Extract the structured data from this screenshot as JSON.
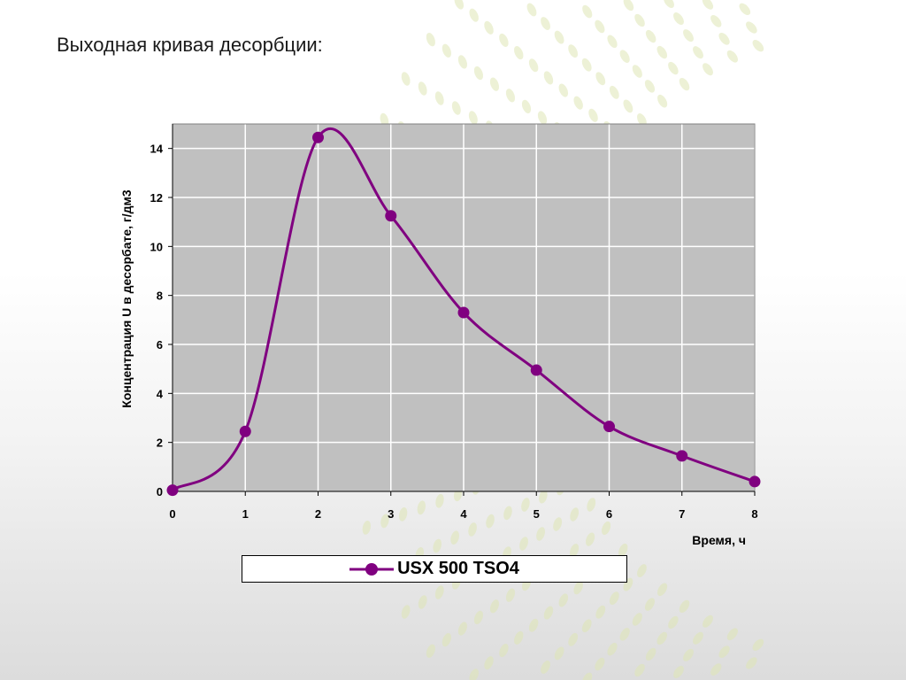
{
  "slide": {
    "title": "Выходная кривая десорбции:"
  },
  "colors": {
    "series": "#800080",
    "plot_bg": "#c0c0c0",
    "grid": "#ffffff",
    "decor": "#dfe6b5"
  },
  "chart_data": {
    "type": "line",
    "title": "",
    "xlabel": "Время, ч",
    "ylabel": "Концентрация U в десорбате, г/дм3",
    "xlim": [
      0,
      8
    ],
    "ylim": [
      0,
      15
    ],
    "xticks": [
      0,
      1,
      2,
      3,
      4,
      5,
      6,
      7,
      8
    ],
    "yticks": [
      0,
      2,
      4,
      6,
      8,
      10,
      12,
      14
    ],
    "grid": true,
    "legend_position": "bottom",
    "smooth": true,
    "series": [
      {
        "name": "USX 500 TSO4",
        "x": [
          0,
          1,
          2,
          3,
          4,
          5,
          6,
          7,
          8
        ],
        "y": [
          0.05,
          2.45,
          14.45,
          11.25,
          7.3,
          4.95,
          2.65,
          1.45,
          0.4
        ]
      }
    ]
  }
}
